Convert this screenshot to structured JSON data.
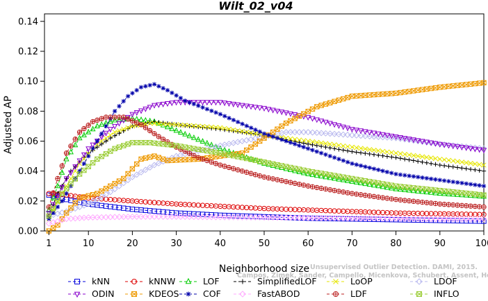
{
  "chart_data": {
    "type": "line",
    "title": "Wilt_02_v04",
    "xlabel": "Neighborhood size",
    "ylabel": "Adjusted AP",
    "xlim": [
      0,
      100
    ],
    "ylim": [
      0,
      0.145
    ],
    "x_ticks": [
      1,
      10,
      20,
      30,
      40,
      50,
      60,
      70,
      80,
      90,
      100
    ],
    "y_ticks": [
      "0.00",
      "0.02",
      "0.04",
      "0.06",
      "0.08",
      "0.10",
      "0.12",
      "0.14"
    ],
    "x_range": [
      1,
      100
    ],
    "grid": false,
    "legend_position": "bottom",
    "watermark": "Campos, Zimek, Sander, Campello, Micenkova, Schubert, Assent, Houle",
    "watermark_partial": "Unsupervised Outlier Detection. DAMI, 2015.",
    "series": [
      {
        "name": "kNN",
        "color": "#0000dd",
        "marker": "square",
        "points": [
          [
            1,
            0.024
          ],
          [
            5,
            0.021
          ],
          [
            10,
            0.018
          ],
          [
            20,
            0.0145
          ],
          [
            30,
            0.012
          ],
          [
            40,
            0.0105
          ],
          [
            50,
            0.0095
          ],
          [
            60,
            0.0085
          ],
          [
            70,
            0.008
          ],
          [
            80,
            0.0075
          ],
          [
            90,
            0.007
          ],
          [
            100,
            0.0065
          ]
        ]
      },
      {
        "name": "kNNW",
        "color": "#dd0000",
        "marker": "circle",
        "points": [
          [
            1,
            0.025
          ],
          [
            5,
            0.024
          ],
          [
            10,
            0.022
          ],
          [
            20,
            0.02
          ],
          [
            30,
            0.018
          ],
          [
            40,
            0.0165
          ],
          [
            50,
            0.015
          ],
          [
            60,
            0.014
          ],
          [
            70,
            0.013
          ],
          [
            80,
            0.012
          ],
          [
            90,
            0.0115
          ],
          [
            100,
            0.011
          ]
        ]
      },
      {
        "name": "LOF",
        "color": "#00cc00",
        "marker": "triangle-up",
        "points": [
          [
            1,
            0.014
          ],
          [
            3,
            0.03
          ],
          [
            5,
            0.048
          ],
          [
            8,
            0.062
          ],
          [
            12,
            0.07
          ],
          [
            16,
            0.074
          ],
          [
            20,
            0.075
          ],
          [
            25,
            0.073
          ],
          [
            30,
            0.067
          ],
          [
            40,
            0.055
          ],
          [
            50,
            0.045
          ],
          [
            60,
            0.038
          ],
          [
            70,
            0.033
          ],
          [
            80,
            0.028
          ],
          [
            90,
            0.025
          ],
          [
            100,
            0.023
          ]
        ]
      },
      {
        "name": "SimplifiedLOF",
        "color": "#000000",
        "marker": "plus",
        "points": [
          [
            1,
            0.01
          ],
          [
            3,
            0.025
          ],
          [
            6,
            0.04
          ],
          [
            10,
            0.052
          ],
          [
            15,
            0.062
          ],
          [
            20,
            0.07
          ],
          [
            25,
            0.073
          ],
          [
            30,
            0.071
          ],
          [
            40,
            0.068
          ],
          [
            50,
            0.064
          ],
          [
            60,
            0.058
          ],
          [
            70,
            0.053
          ],
          [
            80,
            0.049
          ],
          [
            90,
            0.044
          ],
          [
            100,
            0.04
          ]
        ]
      },
      {
        "name": "LoOP",
        "color": "#e6e600",
        "marker": "cross",
        "points": [
          [
            1,
            0.008
          ],
          [
            4,
            0.025
          ],
          [
            8,
            0.045
          ],
          [
            12,
            0.058
          ],
          [
            16,
            0.066
          ],
          [
            20,
            0.07
          ],
          [
            24,
            0.072
          ],
          [
            30,
            0.071
          ],
          [
            40,
            0.069
          ],
          [
            50,
            0.064
          ],
          [
            60,
            0.06
          ],
          [
            70,
            0.056
          ],
          [
            80,
            0.052
          ],
          [
            90,
            0.048
          ],
          [
            100,
            0.044
          ]
        ]
      },
      {
        "name": "LDOF",
        "color": "#b8b8ee",
        "marker": "diamond",
        "points": [
          [
            1,
            0.01
          ],
          [
            5,
            0.013
          ],
          [
            10,
            0.018
          ],
          [
            15,
            0.026
          ],
          [
            20,
            0.036
          ],
          [
            25,
            0.044
          ],
          [
            30,
            0.05
          ],
          [
            40,
            0.057
          ],
          [
            50,
            0.063
          ],
          [
            55,
            0.066
          ],
          [
            60,
            0.066
          ],
          [
            70,
            0.064
          ],
          [
            80,
            0.062
          ],
          [
            90,
            0.058
          ],
          [
            100,
            0.055
          ]
        ]
      },
      {
        "name": "ODIN",
        "color": "#8800cc",
        "marker": "triangle-down",
        "points": [
          [
            1,
            0.012
          ],
          [
            5,
            0.035
          ],
          [
            10,
            0.055
          ],
          [
            15,
            0.068
          ],
          [
            20,
            0.078
          ],
          [
            25,
            0.084
          ],
          [
            30,
            0.086
          ],
          [
            40,
            0.086
          ],
          [
            50,
            0.082
          ],
          [
            60,
            0.076
          ],
          [
            70,
            0.068
          ],
          [
            80,
            0.063
          ],
          [
            90,
            0.058
          ],
          [
            100,
            0.054
          ]
        ]
      },
      {
        "name": "KDEOS",
        "color": "#ee9900",
        "marker": "square-x",
        "points": [
          [
            1,
            0.0
          ],
          [
            3,
            0.004
          ],
          [
            5,
            0.012
          ],
          [
            8,
            0.022
          ],
          [
            12,
            0.025
          ],
          [
            18,
            0.035
          ],
          [
            22,
            0.048
          ],
          [
            25,
            0.05
          ],
          [
            28,
            0.047
          ],
          [
            35,
            0.048
          ],
          [
            45,
            0.052
          ],
          [
            55,
            0.072
          ],
          [
            62,
            0.083
          ],
          [
            70,
            0.09
          ],
          [
            80,
            0.092
          ],
          [
            90,
            0.096
          ],
          [
            100,
            0.099
          ]
        ]
      },
      {
        "name": "COF",
        "color": "#0000aa",
        "marker": "asterisk",
        "points": [
          [
            1,
            0.008
          ],
          [
            4,
            0.02
          ],
          [
            8,
            0.04
          ],
          [
            12,
            0.06
          ],
          [
            16,
            0.08
          ],
          [
            19,
            0.09
          ],
          [
            22,
            0.096
          ],
          [
            25,
            0.098
          ],
          [
            28,
            0.094
          ],
          [
            32,
            0.087
          ],
          [
            40,
            0.078
          ],
          [
            50,
            0.065
          ],
          [
            60,
            0.055
          ],
          [
            70,
            0.045
          ],
          [
            80,
            0.038
          ],
          [
            90,
            0.034
          ],
          [
            100,
            0.03
          ]
        ]
      },
      {
        "name": "FastABOD",
        "color": "#ffaaff",
        "marker": "diamond",
        "points": [
          [
            1,
            0.005
          ],
          [
            5,
            0.008
          ],
          [
            10,
            0.009
          ],
          [
            20,
            0.0095
          ],
          [
            30,
            0.0095
          ],
          [
            40,
            0.0092
          ],
          [
            50,
            0.009
          ],
          [
            60,
            0.0088
          ],
          [
            70,
            0.0085
          ],
          [
            80,
            0.0083
          ],
          [
            90,
            0.008
          ],
          [
            100,
            0.008
          ]
        ]
      },
      {
        "name": "LDF",
        "color": "#bb2222",
        "marker": "circle-plus",
        "points": [
          [
            1,
            0.016
          ],
          [
            3,
            0.035
          ],
          [
            5,
            0.052
          ],
          [
            8,
            0.066
          ],
          [
            11,
            0.073
          ],
          [
            14,
            0.076
          ],
          [
            18,
            0.076
          ],
          [
            22,
            0.071
          ],
          [
            26,
            0.063
          ],
          [
            30,
            0.056
          ],
          [
            35,
            0.049
          ],
          [
            40,
            0.044
          ],
          [
            50,
            0.036
          ],
          [
            60,
            0.03
          ],
          [
            70,
            0.025
          ],
          [
            80,
            0.021
          ],
          [
            90,
            0.018
          ],
          [
            100,
            0.016
          ]
        ]
      },
      {
        "name": "INFLO",
        "color": "#99cc33",
        "marker": "square-x",
        "points": [
          [
            1,
            0.01
          ],
          [
            4,
            0.025
          ],
          [
            8,
            0.038
          ],
          [
            12,
            0.048
          ],
          [
            16,
            0.055
          ],
          [
            20,
            0.059
          ],
          [
            24,
            0.059
          ],
          [
            30,
            0.057
          ],
          [
            40,
            0.052
          ],
          [
            50,
            0.046
          ],
          [
            60,
            0.04
          ],
          [
            70,
            0.035
          ],
          [
            80,
            0.03
          ],
          [
            90,
            0.027
          ],
          [
            100,
            0.024
          ]
        ]
      }
    ]
  }
}
